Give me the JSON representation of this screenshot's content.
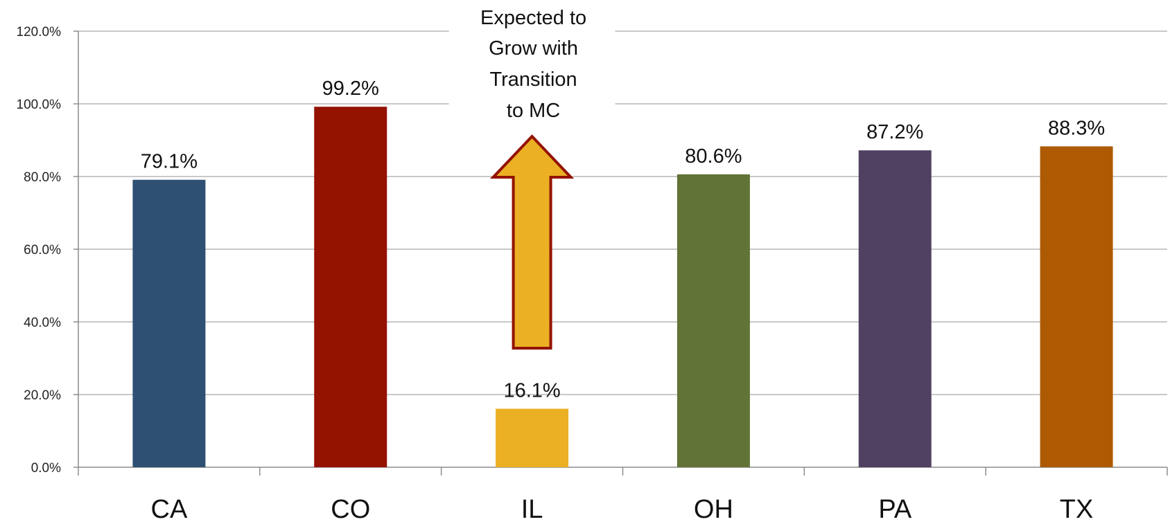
{
  "chart_data": {
    "type": "bar",
    "categories": [
      "CA",
      "CO",
      "IL",
      "OH",
      "PA",
      "TX"
    ],
    "values": [
      79.1,
      99.2,
      16.1,
      80.6,
      87.2,
      88.3
    ],
    "data_labels": [
      "79.1%",
      "99.2%",
      "16.1%",
      "80.6%",
      "87.2%",
      "88.3%"
    ],
    "colors": [
      "#2e5173",
      "#931200",
      "#ebb024",
      "#617337",
      "#504162",
      "#ad5a02"
    ],
    "ylim": [
      0,
      120
    ],
    "yticks": [
      0,
      20,
      40,
      60,
      80,
      100,
      120
    ],
    "ytick_labels": [
      "0.0%",
      "20.0%",
      "40.0%",
      "60.0%",
      "80.0%",
      "100.0%",
      "120.0%"
    ],
    "grid": true,
    "legend": "none",
    "title": "",
    "xlabel": "",
    "ylabel": "",
    "annotation": {
      "category": "IL",
      "lines": [
        "Expected to",
        "Grow with",
        "Transition",
        "to MC"
      ],
      "arrow": "up",
      "arrow_fill": "#ebb024",
      "arrow_stroke": "#931200"
    }
  }
}
